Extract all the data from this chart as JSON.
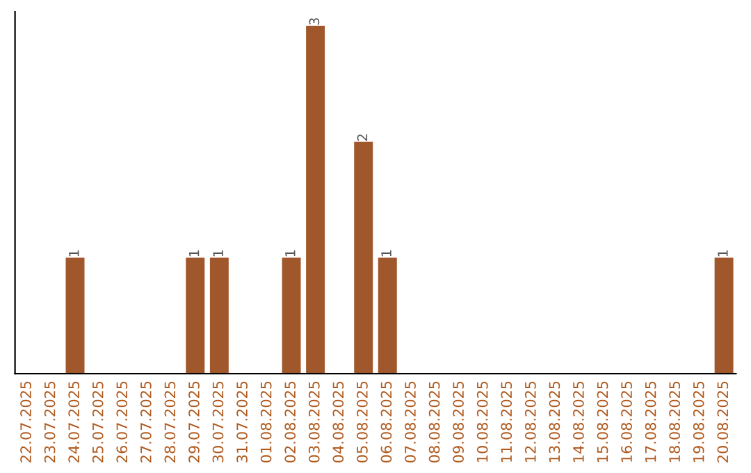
{
  "chart_data": {
    "type": "bar",
    "categories": [
      "22.07.2025",
      "23.07.2025",
      "24.07.2025",
      "25.07.2025",
      "26.07.2025",
      "27.07.2025",
      "28.07.2025",
      "29.07.2025",
      "30.07.2025",
      "31.07.2025",
      "01.08.2025",
      "02.08.2025",
      "03.08.2025",
      "04.08.2025",
      "05.08.2025",
      "06.08.2025",
      "07.08.2025",
      "08.08.2025",
      "09.08.2025",
      "10.08.2025",
      "11.08.2025",
      "12.08.2025",
      "13.08.2025",
      "14.08.2025",
      "15.08.2025",
      "16.08.2025",
      "17.08.2025",
      "18.08.2025",
      "19.08.2025",
      "20.08.2025"
    ],
    "values": [
      0,
      0,
      1,
      0,
      0,
      0,
      0,
      1,
      1,
      0,
      0,
      1,
      3,
      0,
      2,
      1,
      0,
      0,
      0,
      0,
      0,
      0,
      0,
      0,
      0,
      0,
      0,
      0,
      0,
      1
    ],
    "value_labels": [
      null,
      null,
      "1",
      null,
      null,
      null,
      null,
      "1",
      "1",
      null,
      null,
      "1",
      "3",
      null,
      "2",
      "1",
      null,
      null,
      null,
      null,
      null,
      null,
      null,
      null,
      null,
      null,
      null,
      null,
      null,
      "1"
    ],
    "color": "#a0572b",
    "tick_labels": "x",
    "grid": false
  }
}
